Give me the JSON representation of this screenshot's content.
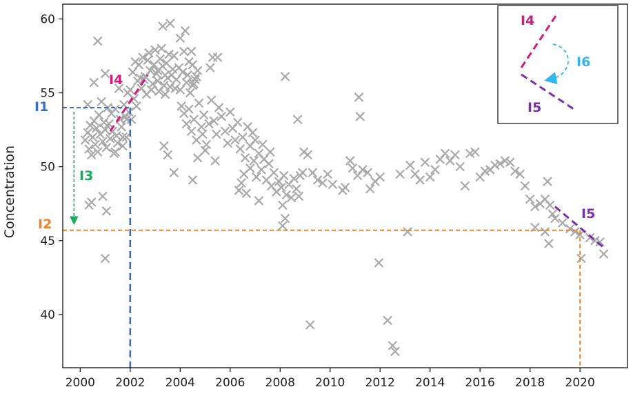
{
  "chart_data": {
    "type": "scatter",
    "title": "",
    "xlabel": "",
    "ylabel": "Concentration",
    "xlim": [
      1999.3,
      2021.9
    ],
    "ylim": [
      36.4,
      61.0
    ],
    "xticks": [
      2000,
      2002,
      2004,
      2006,
      2008,
      2010,
      2012,
      2014,
      2016,
      2018,
      2020
    ],
    "xtick_labels": [
      "2000",
      "2002",
      "2004",
      "2006",
      "2008",
      "2010",
      "2012",
      "2014",
      "2016",
      "2018",
      "2020"
    ],
    "yticks": [
      40,
      45,
      50,
      55,
      60
    ],
    "ytick_labels": [
      "40",
      "45",
      "50",
      "55",
      "60"
    ],
    "grid": false,
    "marker": "x",
    "marker_color": "#a9a9a9",
    "series": [
      {
        "points": [
          [
            2000.2,
            51.8
          ],
          [
            2000.3,
            52.3
          ],
          [
            2000.35,
            51.2
          ],
          [
            2000.4,
            52.8
          ],
          [
            2000.45,
            50.8
          ],
          [
            2000.5,
            52.0
          ],
          [
            2000.55,
            53.1
          ],
          [
            2000.6,
            51.5
          ],
          [
            2000.65,
            52.6
          ],
          [
            2000.7,
            51.0
          ],
          [
            2000.75,
            53.5
          ],
          [
            2000.8,
            52.2
          ],
          [
            2000.85,
            54.4
          ],
          [
            2000.9,
            51.7
          ],
          [
            2000.95,
            53.0
          ],
          [
            2001.0,
            52.5
          ],
          [
            2001.05,
            51.3
          ],
          [
            2001.1,
            54.0
          ],
          [
            2001.15,
            52.9
          ],
          [
            2001.2,
            51.9
          ],
          [
            2001.25,
            53.6
          ],
          [
            2001.3,
            52.4
          ],
          [
            2001.35,
            50.9
          ],
          [
            2001.4,
            53.9
          ],
          [
            2001.45,
            52.1
          ],
          [
            2001.5,
            51.6
          ],
          [
            2001.55,
            55.3
          ],
          [
            2001.6,
            53.2
          ],
          [
            2001.65,
            52.7
          ],
          [
            2001.7,
            51.4
          ],
          [
            2001.75,
            54.2
          ],
          [
            2001.8,
            53.4
          ],
          [
            2001.85,
            52.0
          ],
          [
            2001.9,
            55.0
          ],
          [
            2001.95,
            53.7
          ],
          [
            2000.3,
            54.2
          ],
          [
            2000.55,
            55.7
          ],
          [
            2001.0,
            56.3
          ],
          [
            2000.7,
            58.5
          ],
          [
            2000.35,
            47.4
          ],
          [
            2000.45,
            47.6
          ],
          [
            2000.9,
            48.0
          ],
          [
            2001.05,
            47.0
          ],
          [
            2001.0,
            43.8
          ],
          [
            2001.4,
            51.0
          ],
          [
            2001.7,
            52.0
          ],
          [
            2001.85,
            53.2
          ],
          [
            2002.0,
            55.2
          ],
          [
            2002.1,
            56.4
          ],
          [
            2002.15,
            54.6
          ],
          [
            2002.2,
            57.1
          ],
          [
            2002.3,
            55.8
          ],
          [
            2002.35,
            56.9
          ],
          [
            2002.45,
            55.3
          ],
          [
            2002.5,
            57.4
          ],
          [
            2002.6,
            56.1
          ],
          [
            2002.65,
            54.9
          ],
          [
            2002.75,
            57.7
          ],
          [
            2002.8,
            56.5
          ],
          [
            2002.9,
            55.6
          ],
          [
            2003.0,
            57.9
          ],
          [
            2003.05,
            56.3
          ],
          [
            2003.15,
            55.1
          ],
          [
            2003.2,
            57.3
          ],
          [
            2003.3,
            56.8
          ],
          [
            2003.35,
            55.5
          ],
          [
            2003.45,
            57.0
          ],
          [
            2003.5,
            56.0
          ],
          [
            2003.6,
            55.4
          ],
          [
            2003.7,
            56.6
          ],
          [
            2003.75,
            57.5
          ],
          [
            2003.85,
            55.9
          ],
          [
            2003.95,
            56.7
          ],
          [
            2004.0,
            55.2
          ],
          [
            2004.1,
            56.4
          ],
          [
            2004.15,
            57.8
          ],
          [
            2004.25,
            55.7
          ],
          [
            2004.3,
            56.2
          ],
          [
            2004.4,
            55.0
          ],
          [
            2004.5,
            56.9
          ],
          [
            2004.55,
            55.6
          ],
          [
            2004.65,
            56.1
          ],
          [
            2002.4,
            56.0
          ],
          [
            2002.55,
            55.9
          ],
          [
            2002.95,
            56.9
          ],
          [
            2003.1,
            56.5
          ],
          [
            2003.4,
            56.2
          ],
          [
            2003.55,
            57.6
          ],
          [
            2003.25,
            58.0
          ],
          [
            2002.7,
            57.2
          ],
          [
            2003.65,
            56.2
          ],
          [
            2002.05,
            53.2
          ],
          [
            2002.25,
            54.1
          ],
          [
            2003.3,
            59.5
          ],
          [
            2003.6,
            59.7
          ],
          [
            2004.2,
            59.2
          ],
          [
            2004.45,
            57.8
          ],
          [
            2004.0,
            58.7
          ],
          [
            2004.35,
            57.1
          ],
          [
            2004.7,
            56.5
          ],
          [
            2003.1,
            55.8
          ],
          [
            2003.8,
            55.3
          ],
          [
            2003.4,
            54.9
          ],
          [
            2002.85,
            55.2
          ],
          [
            2004.6,
            55.9
          ],
          [
            2004.5,
            55.5
          ],
          [
            2004.05,
            54.1
          ],
          [
            2004.15,
            53.6
          ],
          [
            2004.25,
            52.9
          ],
          [
            2004.35,
            53.9
          ],
          [
            2004.45,
            52.4
          ],
          [
            2004.55,
            53.2
          ],
          [
            2004.65,
            51.8
          ],
          [
            2004.75,
            54.3
          ],
          [
            2004.85,
            52.7
          ],
          [
            2004.95,
            53.5
          ],
          [
            2005.05,
            51.5
          ],
          [
            2005.15,
            52.9
          ],
          [
            2005.25,
            54.5
          ],
          [
            2005.35,
            53.1
          ],
          [
            2005.45,
            52.2
          ],
          [
            2005.55,
            54.0
          ],
          [
            2005.65,
            53.4
          ],
          [
            2004.7,
            50.6
          ],
          [
            2005.0,
            51.1
          ],
          [
            2005.4,
            50.4
          ],
          [
            2004.5,
            49.1
          ],
          [
            2003.75,
            49.6
          ],
          [
            2003.35,
            51.4
          ],
          [
            2003.5,
            50.8
          ],
          [
            2005.3,
            57.4
          ],
          [
            2005.5,
            57.4
          ],
          [
            2005.2,
            56.7
          ],
          [
            2004.9,
            52.2
          ],
          [
            2005.8,
            52.4
          ],
          [
            2005.9,
            51.6
          ],
          [
            2006.0,
            53.7
          ],
          [
            2006.1,
            52.6
          ],
          [
            2006.2,
            51.8
          ],
          [
            2006.3,
            53.0
          ],
          [
            2006.4,
            51.2
          ],
          [
            2006.5,
            52.0
          ],
          [
            2006.6,
            50.6
          ],
          [
            2006.7,
            52.7
          ],
          [
            2006.8,
            51.4
          ],
          [
            2006.9,
            52.3
          ],
          [
            2006.35,
            48.4
          ],
          [
            2006.45,
            48.9
          ],
          [
            2006.55,
            49.5
          ],
          [
            2006.65,
            48.2
          ],
          [
            2006.8,
            49.9
          ],
          [
            2006.95,
            50.4
          ],
          [
            2007.05,
            49.3
          ],
          [
            2007.15,
            50.9
          ],
          [
            2007.25,
            49.8
          ],
          [
            2007.35,
            50.5
          ],
          [
            2007.45,
            49.1
          ],
          [
            2007.55,
            50.2
          ],
          [
            2007.65,
            48.7
          ],
          [
            2007.75,
            49.6
          ],
          [
            2007.85,
            48.3
          ],
          [
            2007.95,
            49.0
          ],
          [
            2008.05,
            48.6
          ],
          [
            2008.15,
            49.4
          ],
          [
            2008.25,
            48.1
          ],
          [
            2008.35,
            48.8
          ],
          [
            2008.45,
            47.9
          ],
          [
            2008.55,
            49.2
          ],
          [
            2008.65,
            48.5
          ],
          [
            2008.75,
            48.0
          ],
          [
            2007.0,
            51.8
          ],
          [
            2007.3,
            51.5
          ],
          [
            2007.6,
            51.0
          ],
          [
            2007.15,
            47.7
          ],
          [
            2008.1,
            47.4
          ],
          [
            2008.2,
            46.5
          ],
          [
            2008.1,
            46.0
          ],
          [
            2008.2,
            56.1
          ],
          [
            2008.7,
            53.2
          ],
          [
            2008.95,
            51.0
          ],
          [
            2009.1,
            50.8
          ],
          [
            2008.8,
            49.4
          ],
          [
            2008.9,
            49.6
          ],
          [
            2009.3,
            49.6
          ],
          [
            2009.5,
            49.1
          ],
          [
            2009.7,
            48.9
          ],
          [
            2009.9,
            49.5
          ],
          [
            2010.1,
            48.8
          ],
          [
            2010.5,
            48.4
          ],
          [
            2010.6,
            48.6
          ],
          [
            2010.8,
            50.4
          ],
          [
            2010.9,
            49.9
          ],
          [
            2011.1,
            49.4
          ],
          [
            2011.3,
            49.8
          ],
          [
            2011.5,
            49.6
          ],
          [
            2011.6,
            48.5
          ],
          [
            2011.8,
            49.0
          ],
          [
            2012.0,
            49.3
          ],
          [
            2011.15,
            54.7
          ],
          [
            2011.2,
            53.4
          ],
          [
            2009.2,
            39.3
          ],
          [
            2011.95,
            43.5
          ],
          [
            2012.3,
            39.6
          ],
          [
            2012.5,
            37.9
          ],
          [
            2012.6,
            37.5
          ],
          [
            2012.8,
            49.5
          ],
          [
            2013.1,
            45.6
          ],
          [
            2013.2,
            50.1
          ],
          [
            2013.4,
            49.5
          ],
          [
            2013.6,
            49.1
          ],
          [
            2013.8,
            50.3
          ],
          [
            2014.0,
            49.3
          ],
          [
            2014.2,
            49.8
          ],
          [
            2014.4,
            50.5
          ],
          [
            2014.6,
            50.9
          ],
          [
            2014.8,
            50.4
          ],
          [
            2015.0,
            50.8
          ],
          [
            2015.2,
            50.0
          ],
          [
            2015.4,
            48.7
          ],
          [
            2015.6,
            50.9
          ],
          [
            2015.8,
            51.0
          ],
          [
            2016.0,
            49.3
          ],
          [
            2016.2,
            49.7
          ],
          [
            2016.4,
            49.8
          ],
          [
            2016.6,
            50.1
          ],
          [
            2016.8,
            50.2
          ],
          [
            2017.0,
            50.4
          ],
          [
            2017.2,
            50.3
          ],
          [
            2017.4,
            49.7
          ],
          [
            2017.6,
            49.5
          ],
          [
            2017.8,
            48.7
          ],
          [
            2018.0,
            47.8
          ],
          [
            2018.2,
            47.3
          ],
          [
            2018.4,
            47.5
          ],
          [
            2018.6,
            47.8
          ],
          [
            2018.8,
            47.4
          ],
          [
            2018.9,
            46.8
          ],
          [
            2019.0,
            46.5
          ],
          [
            2018.2,
            45.9
          ],
          [
            2018.6,
            45.6
          ],
          [
            2018.75,
            44.8
          ],
          [
            2018.7,
            49.0
          ],
          [
            2019.3,
            46.2
          ],
          [
            2019.6,
            45.8
          ],
          [
            2019.8,
            45.6
          ],
          [
            2020.0,
            45.4
          ],
          [
            2020.05,
            43.8
          ],
          [
            2020.4,
            45.2
          ],
          [
            2020.6,
            45.0
          ],
          [
            2020.8,
            44.9
          ],
          [
            2020.95,
            44.1
          ]
        ]
      }
    ],
    "annotations": {
      "I1": {
        "label": "I1",
        "color": "#3a6cc8",
        "x": 2002.0,
        "y": 54.0
      },
      "I2": {
        "label": "I2",
        "color": "#f0822a",
        "x": 2020.0,
        "y": 45.7
      },
      "I3": {
        "label": "I3",
        "color": "#1aaa5e",
        "from_y": 54.0,
        "to_y": 45.7,
        "x": 1999.75
      },
      "I4": {
        "label": "I4",
        "color": "#d6187f",
        "from": [
          2001.2,
          52.4
        ],
        "to": [
          2002.7,
          56.2
        ]
      },
      "I5": {
        "label": "I5",
        "color": "#7b2fad",
        "from": [
          2019.0,
          47.3
        ],
        "to": [
          2020.9,
          44.6
        ]
      },
      "I6": {
        "label": "I6",
        "color": "#33b5f0"
      }
    },
    "legend_box": {
      "position": "top-right",
      "labels": [
        "I4",
        "I6",
        "I5"
      ]
    }
  }
}
